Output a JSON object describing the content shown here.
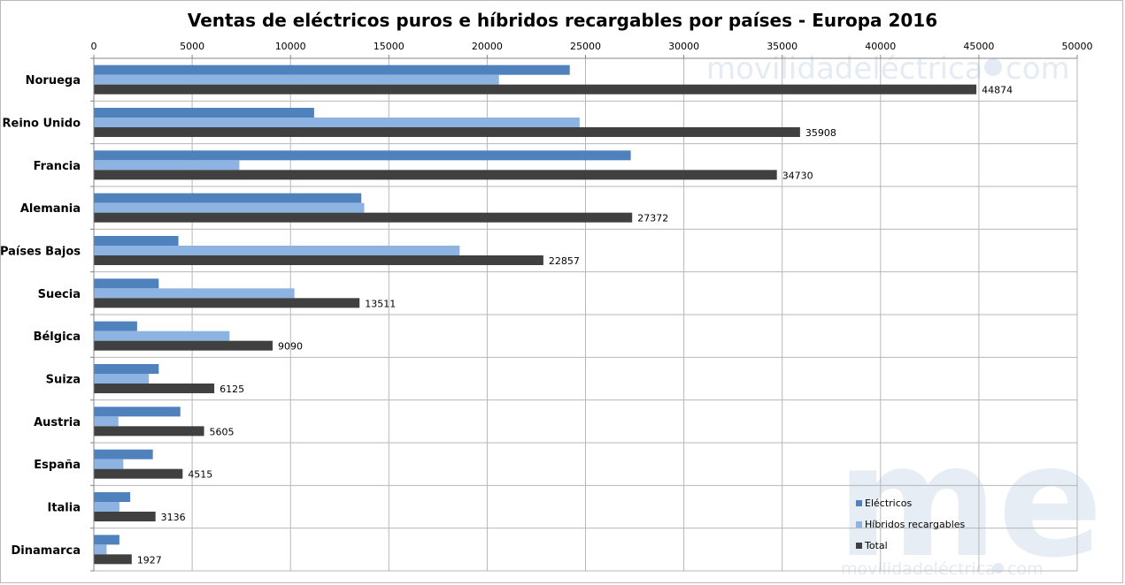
{
  "watermark": {
    "top_text": "movilidadeléctrica",
    "top_suffix": "com",
    "logo_letters": "me",
    "bottom_text": "movilidadeléctrica",
    "bottom_suffix": "com"
  },
  "chart_data": {
    "type": "bar",
    "orientation": "horizontal",
    "title": "Ventas de eléctricos puros e híbridos recargables por países - Europa 2016",
    "xlim": [
      0,
      50000
    ],
    "xticks": [
      0,
      5000,
      10000,
      15000,
      20000,
      25000,
      30000,
      35000,
      40000,
      45000,
      50000
    ],
    "grid": true,
    "legend_position": "bottom-right",
    "categories": [
      "Noruega",
      "Reino Unido",
      "Francia",
      "Alemania",
      "Países Bajos",
      "Suecia",
      "Bélgica",
      "Suiza",
      "Austria",
      "España",
      "Italia",
      "Dinamarca"
    ],
    "series": [
      {
        "name": "Eléctricos",
        "color": "#4f81bd",
        "values": [
          24200,
          11200,
          27300,
          13600,
          4300,
          3300,
          2200,
          3300,
          4400,
          3000,
          1850,
          1300
        ]
      },
      {
        "name": "Híbridos recargables",
        "color": "#8db3e2",
        "values": [
          20600,
          24700,
          7400,
          13750,
          18600,
          10200,
          6900,
          2800,
          1250,
          1500,
          1300,
          650
        ]
      },
      {
        "name": "Total",
        "color": "#404040",
        "values": [
          44874,
          35908,
          34730,
          27372,
          22857,
          13511,
          9090,
          6125,
          5605,
          4515,
          3136,
          1927
        ],
        "labels": [
          "44874",
          "35908",
          "34730",
          "27372",
          "22857",
          "13511",
          "9090",
          "6125",
          "5605",
          "4515",
          "3136",
          "1927"
        ]
      }
    ]
  }
}
